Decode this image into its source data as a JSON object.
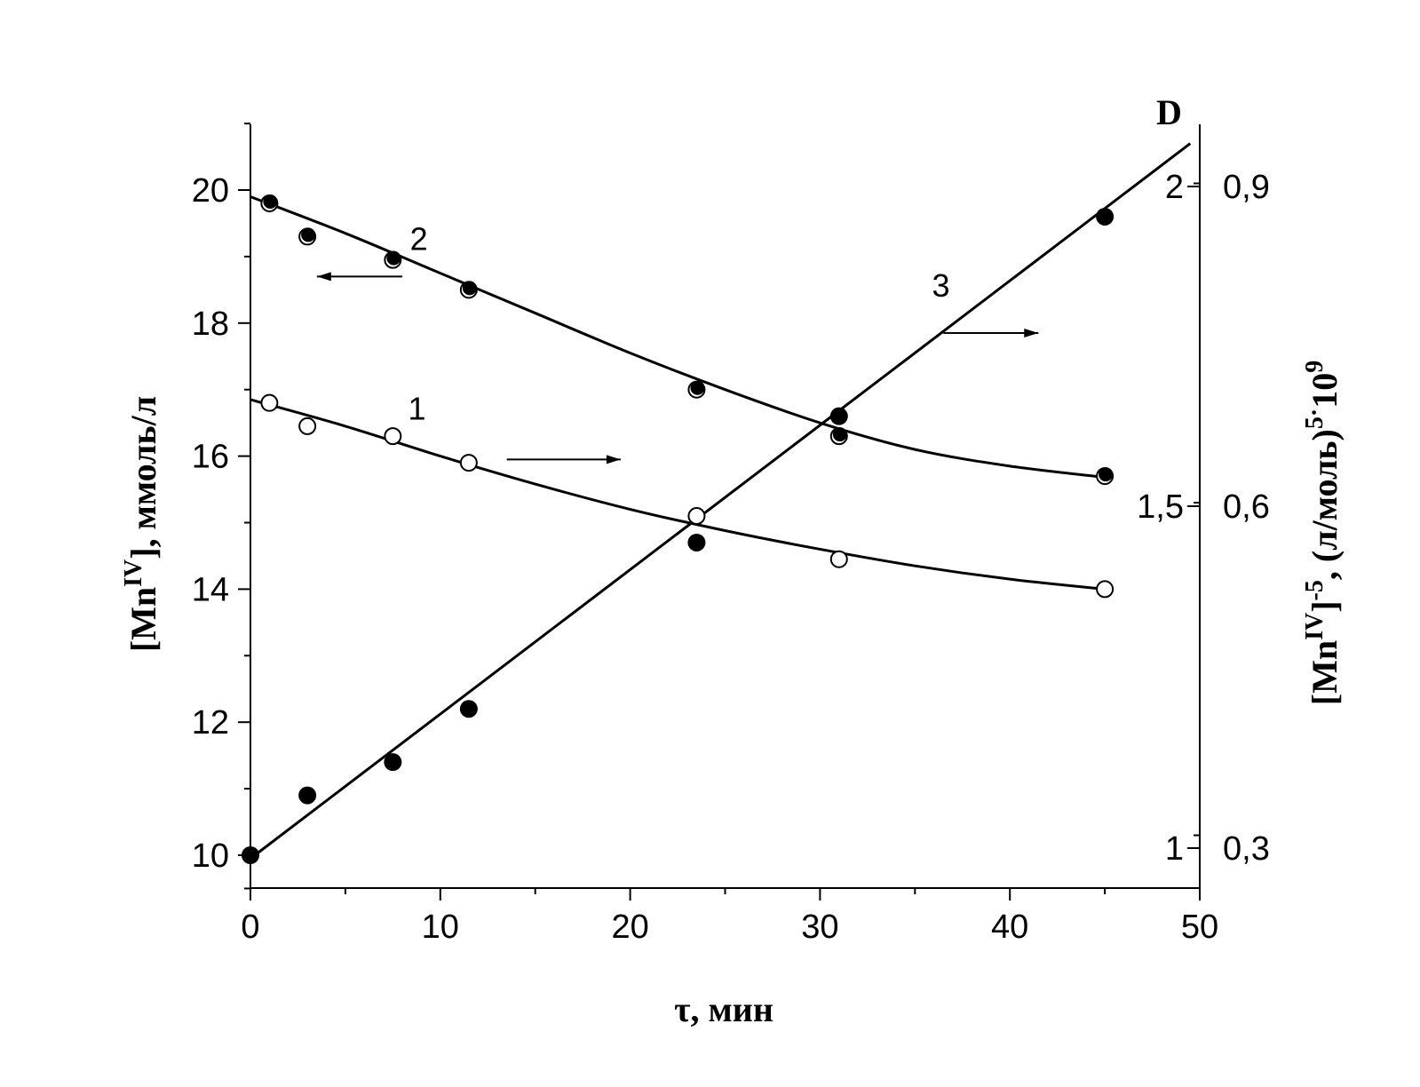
{
  "chart_data": {
    "type": "scatter",
    "xlabel": "τ, мин",
    "ylabel_left": {
      "main": "[Mn",
      "sup": "IV",
      "rest": "], ммоль/л"
    },
    "ylabel_right": {
      "main": "[Mn",
      "sup1": "IV",
      "mid": "]",
      "sup2": "-5",
      "rest": ", (л/моль)",
      "sup3": "5",
      "dot": "·",
      "tail": "10",
      "sup4": "9"
    },
    "right_axis_header": "D",
    "xlim": [
      0,
      50
    ],
    "x_ticks": [
      "0",
      "10",
      "20",
      "30",
      "40",
      "50"
    ],
    "ylim_left": [
      9.5,
      21
    ],
    "y_ticks_left": [
      "10",
      "12",
      "14",
      "16",
      "18",
      "20"
    ],
    "y_ticks_right_mn": [
      "1",
      "1,5",
      "2"
    ],
    "y_ticks_right_d": [
      "0,3",
      "0,6",
      "0,9"
    ],
    "series": [
      {
        "name": "1",
        "axis": "right",
        "marker": "open-circle",
        "points": [
          [
            1,
            16.8
          ],
          [
            3,
            16.45
          ],
          [
            7.5,
            16.3
          ],
          [
            11.5,
            15.9
          ],
          [
            23.5,
            15.1
          ],
          [
            31,
            14.45
          ],
          [
            45,
            14.0
          ]
        ],
        "fit": [
          [
            0,
            16.85
          ],
          [
            5,
            16.45
          ],
          [
            10,
            16.0
          ],
          [
            15,
            15.58
          ],
          [
            20,
            15.2
          ],
          [
            25,
            14.88
          ],
          [
            30,
            14.6
          ],
          [
            35,
            14.35
          ],
          [
            40,
            14.15
          ],
          [
            45,
            14.0
          ]
        ]
      },
      {
        "name": "2",
        "axis": "left",
        "marker": "filled-and-open-circle",
        "points": [
          [
            1,
            19.8
          ],
          [
            3,
            19.3
          ],
          [
            7.5,
            18.95
          ],
          [
            11.5,
            18.5
          ],
          [
            23.5,
            17.0
          ],
          [
            31,
            16.3
          ],
          [
            45,
            15.7
          ]
        ],
        "fit": [
          [
            0,
            19.9
          ],
          [
            5,
            19.35
          ],
          [
            10,
            18.75
          ],
          [
            15,
            18.15
          ],
          [
            20,
            17.55
          ],
          [
            25,
            17.0
          ],
          [
            30,
            16.5
          ],
          [
            35,
            16.1
          ],
          [
            40,
            15.85
          ],
          [
            45,
            15.68
          ]
        ]
      },
      {
        "name": "3",
        "axis": "right",
        "marker": "filled-circle",
        "points": [
          [
            0,
            10.0
          ],
          [
            3,
            10.9
          ],
          [
            7.5,
            11.4
          ],
          [
            11.5,
            12.2
          ],
          [
            23.5,
            14.7
          ],
          [
            31,
            16.6
          ],
          [
            45,
            19.6
          ]
        ],
        "fit": [
          [
            0,
            9.95
          ],
          [
            49.5,
            20.7
          ]
        ]
      }
    ],
    "arrows": [
      {
        "series": "2",
        "from": [
          8.0,
          18.7
        ],
        "to": [
          3.5,
          18.7
        ],
        "direction": "left"
      },
      {
        "series": "1",
        "from": [
          13.5,
          15.95
        ],
        "to": [
          19.5,
          15.95
        ],
        "direction": "right"
      },
      {
        "series": "3",
        "from": [
          36.5,
          17.85
        ],
        "to": [
          41.5,
          17.85
        ],
        "direction": "right"
      }
    ],
    "grid": false
  }
}
